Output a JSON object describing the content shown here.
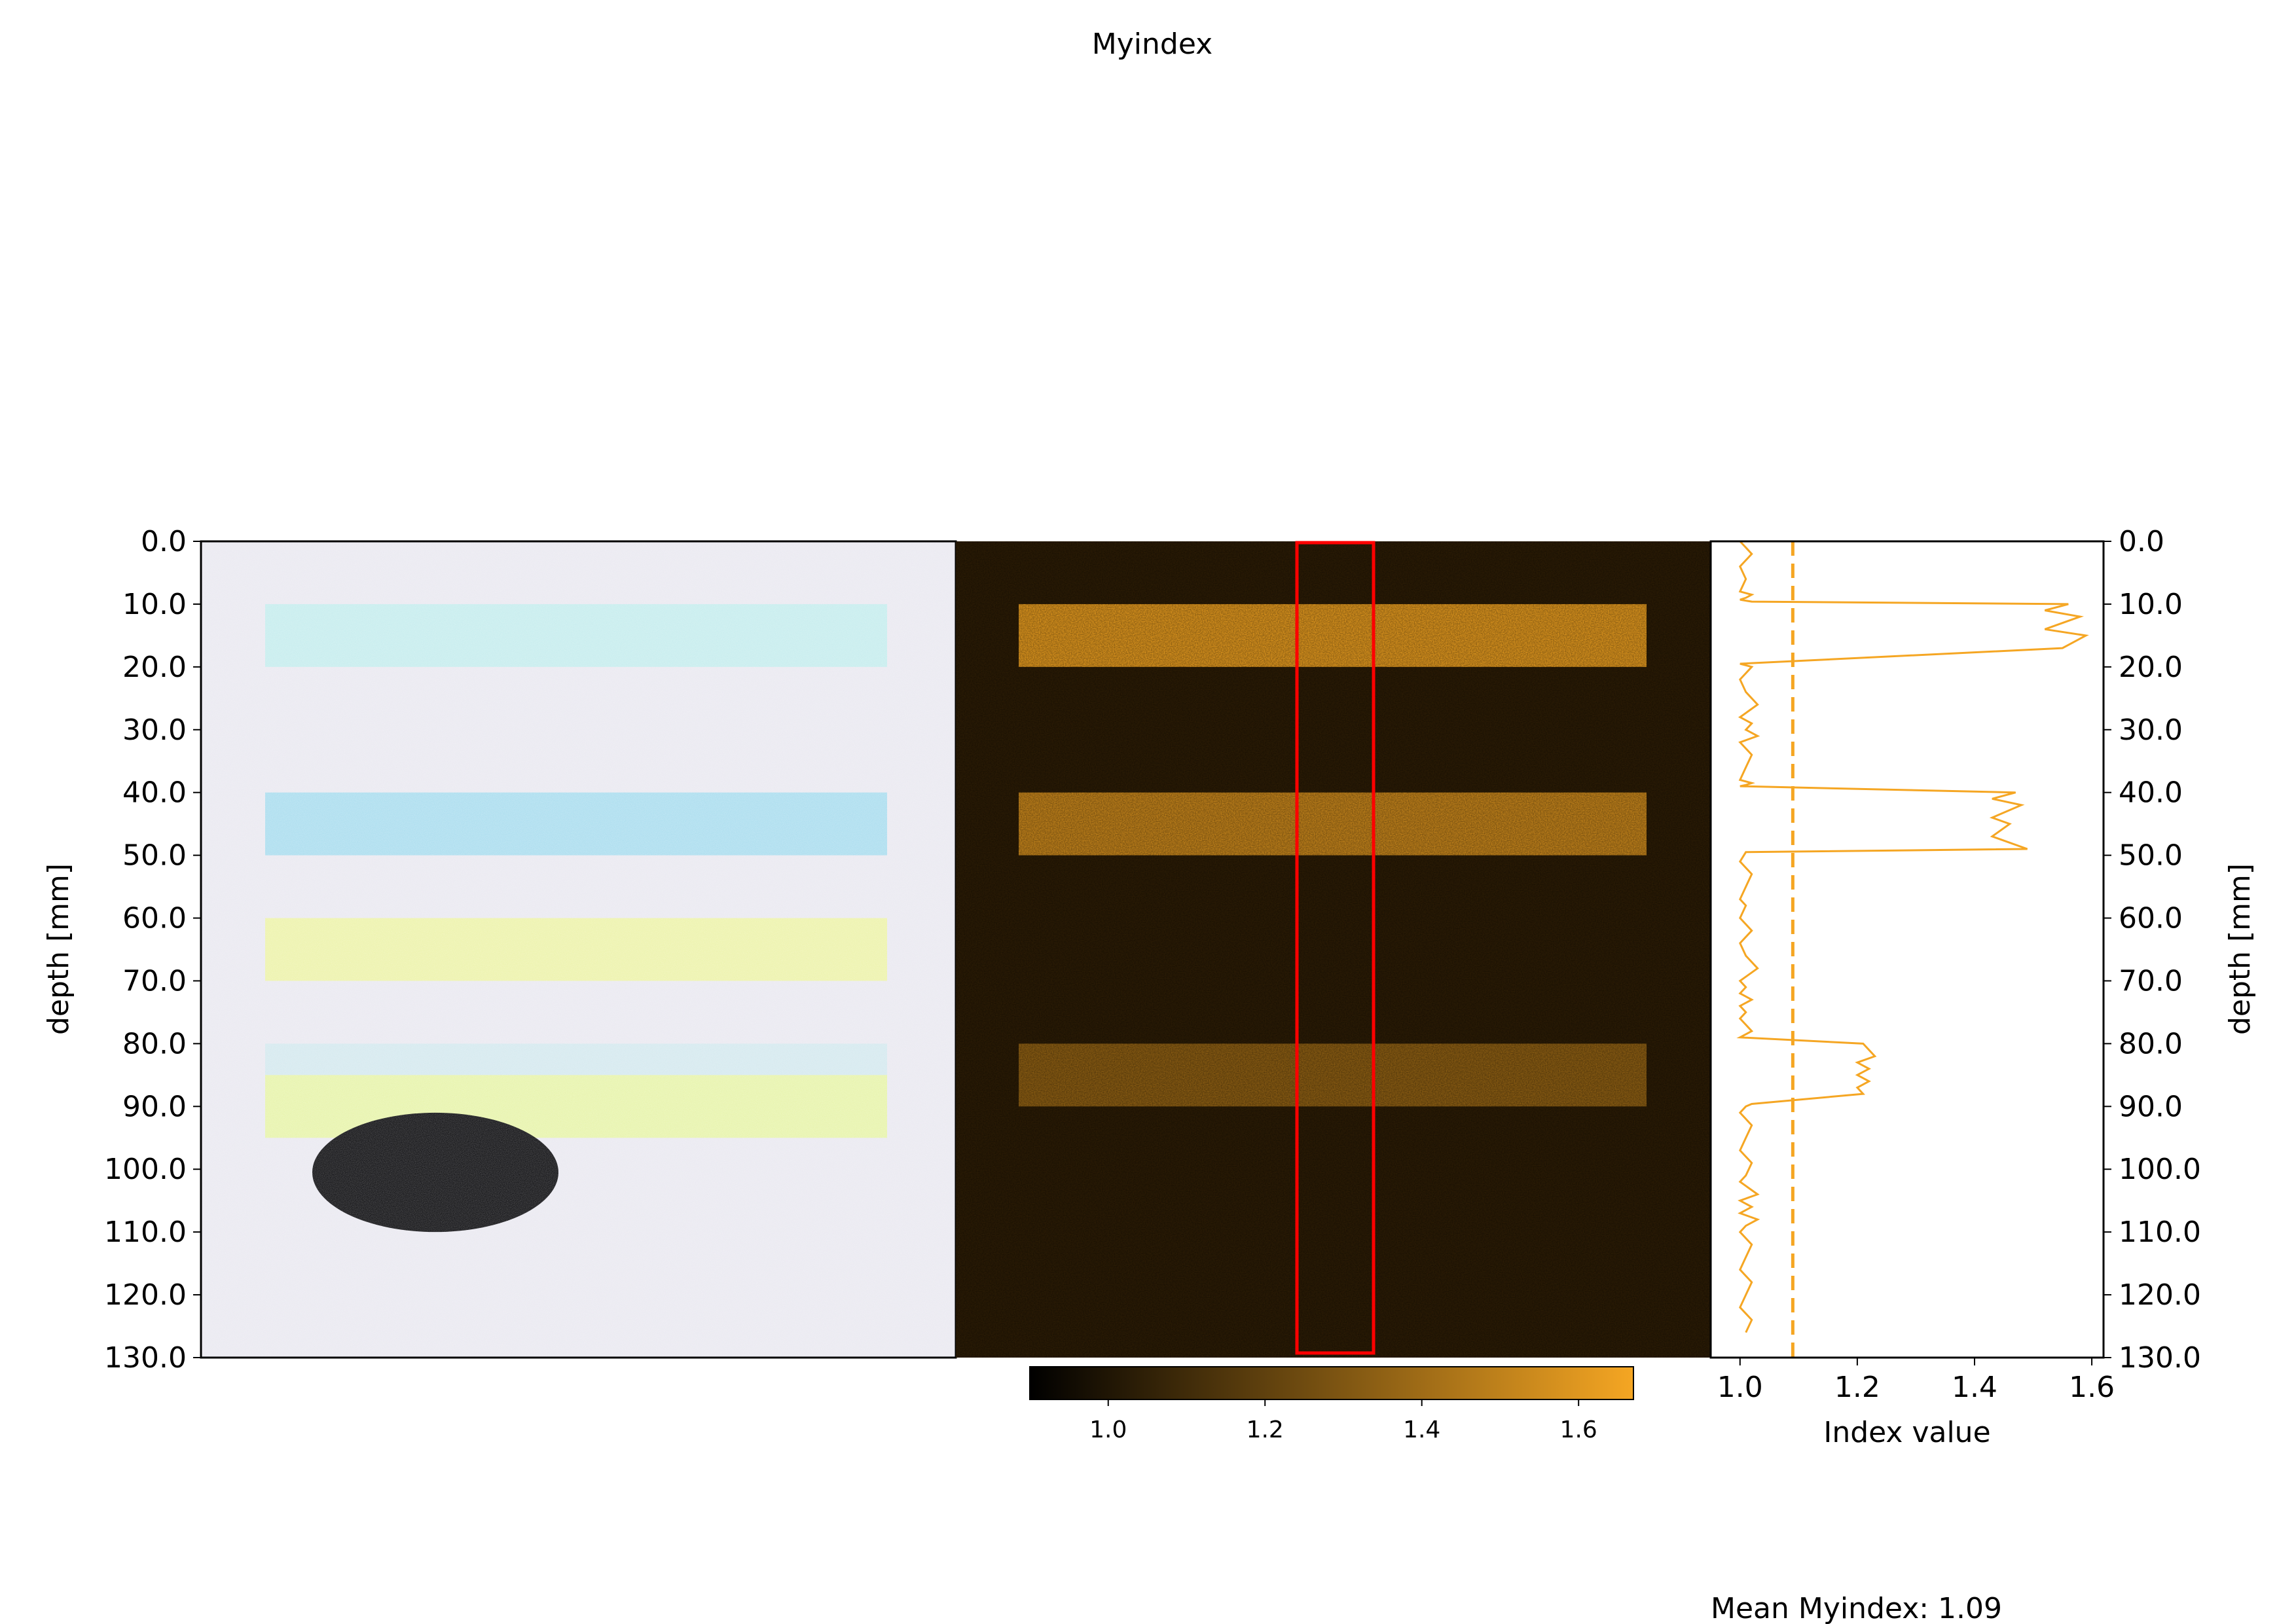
{
  "figure": {
    "title": "Myindex",
    "footer": "Mean Myindex: 1.09"
  },
  "chart_data": [
    {
      "type": "heatmap",
      "panel": "rgb-image",
      "ylabel": "depth [mm]",
      "ylim": [
        0,
        130
      ],
      "yticks": [
        "0.0",
        "10.0",
        "20.0",
        "30.0",
        "40.0",
        "50.0",
        "60.0",
        "70.0",
        "80.0",
        "90.0",
        "100.0",
        "110.0",
        "120.0",
        "130.0"
      ],
      "background_color": "#e9e8f0",
      "bands": [
        {
          "depth": [
            10,
            20
          ],
          "color": "#c4eced"
        },
        {
          "depth": [
            40,
            50
          ],
          "color": "#a8dcee"
        },
        {
          "depth": [
            60,
            70
          ],
          "color": "#ecf2a8"
        },
        {
          "depth": [
            80,
            85
          ],
          "color": "#d3e8ee"
        },
        {
          "depth": [
            85,
            95
          ],
          "color": "#e6f3a8"
        }
      ],
      "dark_object": {
        "depth": [
          91,
          110
        ],
        "color": "#050508"
      }
    },
    {
      "type": "heatmap",
      "panel": "index-map",
      "background_color": "#2a1b05",
      "accent_color": "#f5a623",
      "selection_color": "#ff0000",
      "bands": [
        {
          "depth": [
            10,
            20
          ],
          "value": 1.55
        },
        {
          "depth": [
            40,
            50
          ],
          "value": 1.45
        },
        {
          "depth": [
            80,
            90
          ],
          "value": 1.25
        }
      ],
      "colorbar": {
        "range": [
          0.9,
          1.67
        ],
        "ticks": [
          "1.0",
          "1.2",
          "1.4",
          "1.6"
        ],
        "colors": [
          "#000000",
          "#f5a623"
        ]
      }
    },
    {
      "type": "line",
      "panel": "profile",
      "xlabel": "Index value",
      "ylabel": "depth [mm]",
      "xlim": [
        0.95,
        1.62
      ],
      "ylim": [
        0,
        130
      ],
      "xticks": [
        "1.0",
        "1.2",
        "1.4",
        "1.6"
      ],
      "yticks": [
        "0.0",
        "10.0",
        "20.0",
        "30.0",
        "40.0",
        "50.0",
        "60.0",
        "70.0",
        "80.0",
        "90.0",
        "100.0",
        "110.0",
        "120.0",
        "130.0"
      ],
      "color": "#f5a623",
      "mean": 1.09,
      "series": [
        {
          "x": [
            1.0,
            1.02,
            1.0,
            1.01,
            1.0,
            1.02,
            1.01,
            1.0,
            1.02,
            1.56,
            1.52,
            1.58,
            1.52,
            1.59,
            1.55,
            1.0,
            1.02,
            1.0,
            1.01,
            1.03,
            1.0,
            1.02,
            1.01,
            1.03,
            1.0,
            1.02,
            1.01,
            1.0,
            1.02,
            1.01,
            1.0,
            1.47,
            1.43,
            1.48,
            1.43,
            1.46,
            1.43,
            1.49,
            1.01,
            1.0,
            1.02,
            1.01,
            1.0,
            1.01,
            1.0,
            1.02,
            1.01,
            1.0,
            1.01,
            1.03,
            1.0,
            1.01,
            1.0,
            1.02,
            1.0,
            1.01,
            1.0,
            1.02,
            1.0,
            1.21,
            1.23,
            1.2,
            1.22,
            1.2,
            1.22,
            1.2,
            1.21,
            1.02,
            1.01,
            1.0,
            1.02,
            1.01,
            1.0,
            1.02,
            1.01,
            1.0,
            1.03,
            1.0,
            1.02,
            1.0,
            1.03,
            1.01,
            1.0,
            1.02,
            1.01,
            1.0,
            1.02,
            1.01,
            1.0,
            1.02,
            1.01
          ],
          "y": [
            0,
            2,
            4,
            6,
            8,
            8.5,
            9,
            9.3,
            9.6,
            10,
            11,
            12,
            14,
            15,
            17,
            19.5,
            20,
            22,
            24,
            26,
            28,
            29,
            30,
            31,
            32,
            34,
            36,
            38,
            38.5,
            38.8,
            39,
            40,
            41,
            42,
            44,
            45,
            47,
            49,
            49.5,
            51,
            53,
            55,
            57,
            58,
            60,
            62,
            63,
            64,
            66,
            68,
            70,
            71,
            72,
            73,
            74,
            75,
            76,
            78,
            79,
            80,
            82,
            83,
            84,
            85,
            86,
            87,
            88,
            89.6,
            90,
            91,
            93,
            95,
            97,
            99,
            101,
            102,
            104,
            105,
            106,
            107,
            108,
            109,
            110,
            112,
            114,
            116,
            118,
            120,
            122,
            124,
            126
          ]
        }
      ]
    }
  ]
}
